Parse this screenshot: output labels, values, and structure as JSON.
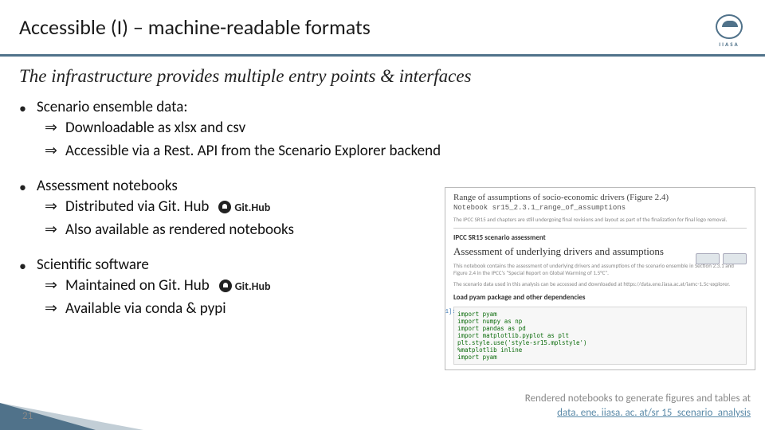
{
  "header": {
    "title": "Accessible (I) – machine-readable formats",
    "logo_text": "IIASA"
  },
  "subtitle": "The infrastructure provides multiple entry points & interfaces",
  "items": [
    {
      "head": "Scenario ensemble data:",
      "subs": [
        {
          "text": "Downloadable as xlsx and csv",
          "gh": false
        },
        {
          "text": "Accessible via a Rest. API from the Scenario Explorer backend",
          "gh": false
        }
      ]
    },
    {
      "head": "Assessment notebooks",
      "subs": [
        {
          "text": "Distributed via Git. Hub",
          "gh": true
        },
        {
          "text": "Also available as rendered notebooks",
          "gh": false
        }
      ]
    },
    {
      "head": "Scientific software",
      "subs": [
        {
          "text": "Maintained on Git. Hub",
          "gh": true
        },
        {
          "text": "Available via conda & pypi",
          "gh": false
        }
      ]
    }
  ],
  "gh_label": "Git.Hub",
  "notebook": {
    "title1": "Range of assumptions of socio-economic drivers (Figure 2.4)",
    "sub": "Notebook sr15_2.3.1_range_of_assumptions",
    "para1": "The IPCC SR15 and chapters are still undergoing final revisions and layout as part of the finalization for final logo removal.",
    "h2": "IPCC SR15 scenario assessment",
    "h1": "Assessment of underlying drivers and assumptions",
    "para2": "This notebook contains the assessment of underlying drivers and assumptions of the scenario ensemble in Section 2.3.1 and Figure 2.4 in the IPCC's \"Special Report on Global Warming of 1.5°C\".",
    "para3": "The scenario data used in this analysis can be accessed and downloaded at https://data.ene.iiasa.ac.at/iamc-1.5c-explorer.",
    "h3": "Load pyam package and other dependencies",
    "code": "import pyam\nimport numpy as np\nimport pandas as pd\nimport matplotlib.pyplot as plt\nplt.style.use('style-sr15.mplstyle')\n%matplotlib inline\nimport pyam"
  },
  "caption": {
    "text": "Rendered  notebooks to generate figures and tables at",
    "link": "data. ene. iiasa. ac. at/sr 15_scenario_analysis"
  },
  "page_number": "21",
  "colors": {
    "accent": "#50728a",
    "link": "#5b8aa8",
    "muted": "#888888"
  }
}
